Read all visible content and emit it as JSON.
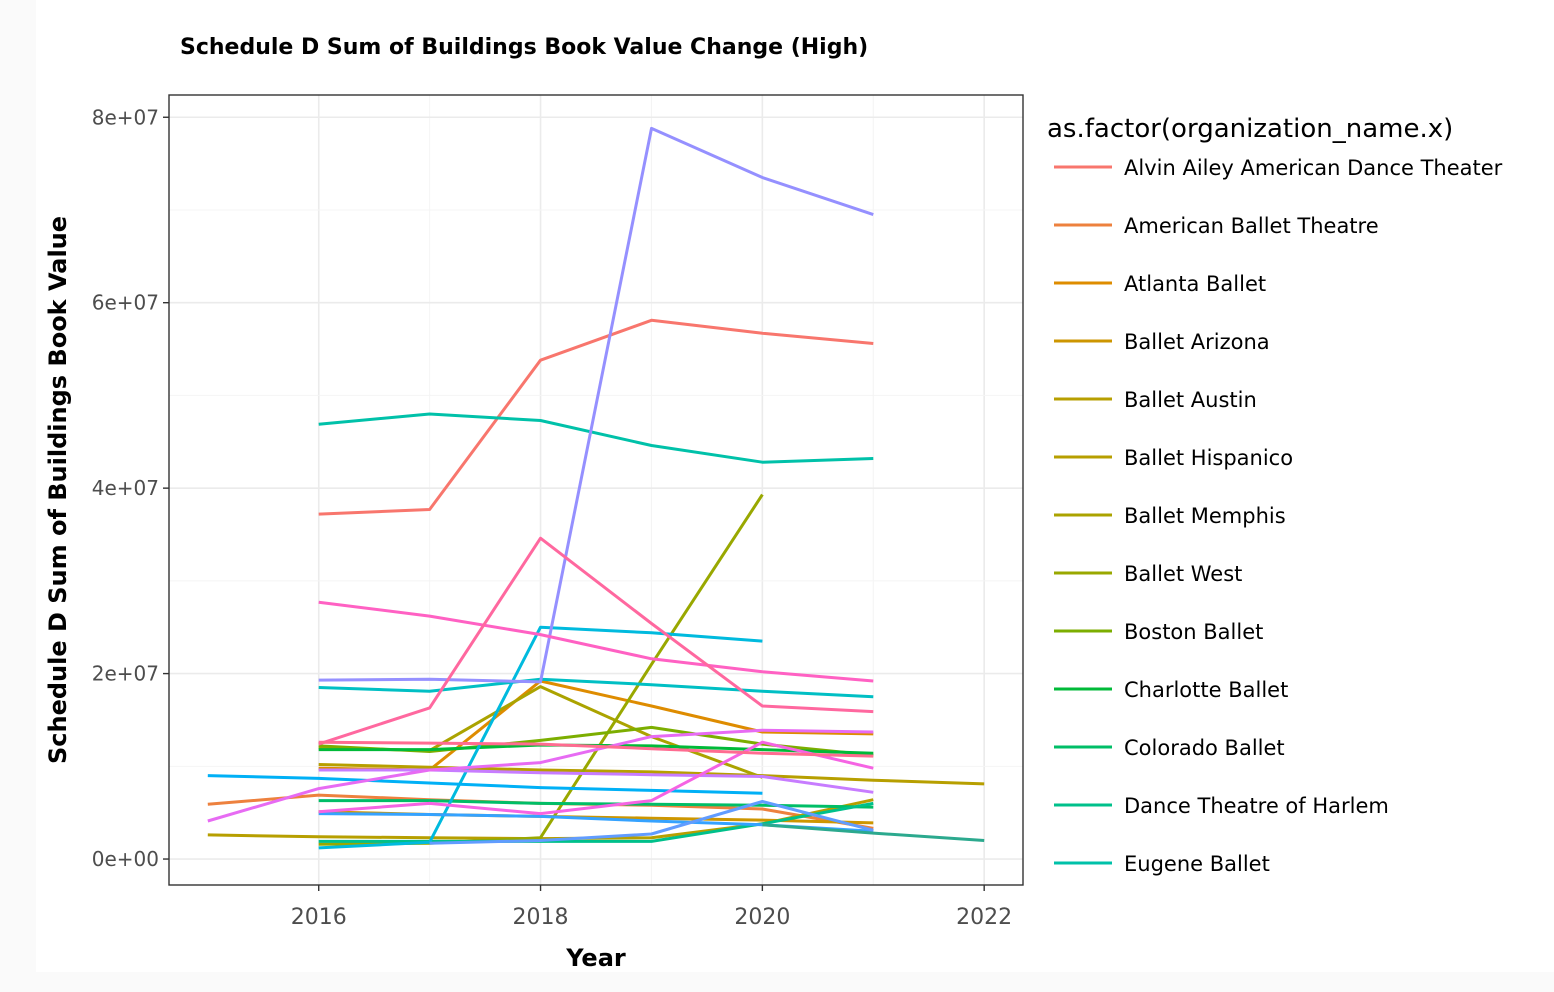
{
  "chart_data": {
    "type": "line",
    "title": "Schedule D Sum of Buildings Book Value Change (High)",
    "xlabel": "Year",
    "ylabel": "Schedule D Sum of Buildings Book Value",
    "xlim": [
      2014.65,
      2022.35
    ],
    "ylim": [
      -2800000,
      82400000
    ],
    "x_ticks": [
      2016,
      2018,
      2020,
      2022
    ],
    "y_ticks": [
      0,
      20000000,
      40000000,
      60000000,
      80000000
    ],
    "y_tick_labels": [
      "0e+00",
      "2e+07",
      "4e+07",
      "6e+07",
      "8e+07"
    ],
    "grid": true,
    "legend_title": "as.factor(organization_name.x)",
    "legend_position": "right",
    "series": [
      {
        "name": "Alvin Ailey American Dance Theater",
        "color": "#F8766D",
        "x": [
          2016,
          2017,
          2018,
          2019,
          2020,
          2021
        ],
        "y": [
          37200000,
          37700000,
          53800000,
          58100000,
          56700000,
          55600000
        ]
      },
      {
        "name": "American Ballet Theatre",
        "color": "#ED813E",
        "x": [
          2015,
          2016,
          2017,
          2018,
          2019,
          2020,
          2021
        ],
        "y": [
          5900000,
          6900000,
          6400000,
          6000000,
          5800000,
          5400000,
          3300000
        ]
      },
      {
        "name": "Atlanta Ballet",
        "color": "#DE8C00",
        "x": [
          2016,
          2017,
          2018,
          2019,
          2020,
          2021
        ],
        "y": [
          9800000,
          9600000,
          19200000,
          16500000,
          13700000,
          13500000
        ]
      },
      {
        "name": "Ballet Arizona",
        "color": "#CD9600",
        "x": [
          2016,
          2017,
          2018,
          2019,
          2020,
          2021
        ],
        "y": [
          5100000,
          4800000,
          4600000,
          4400000,
          4200000,
          3900000
        ]
      },
      {
        "name": "Ballet Austin",
        "color": "#B79F00",
        "x": [
          2015,
          2016,
          2017,
          2018,
          2019,
          2020,
          2021
        ],
        "y": [
          2600000,
          2400000,
          2300000,
          2200000,
          2300000,
          3800000,
          6400000
        ]
      },
      {
        "name": "Ballet Hispanico",
        "color": "#B79F00",
        "x": [
          2016,
          2017,
          2018,
          2019,
          2020,
          2021,
          2022
        ],
        "y": [
          10200000,
          9900000,
          9600000,
          9400000,
          9000000,
          8500000,
          8100000
        ]
      },
      {
        "name": "Ballet Memphis",
        "color": "#ABA300",
        "x": [
          2016,
          2017,
          2018,
          2019,
          2020
        ],
        "y": [
          12000000,
          11700000,
          18600000,
          13200000,
          8800000
        ]
      },
      {
        "name": "Ballet West",
        "color": "#99A800",
        "x": [
          2016,
          2017,
          2018,
          2019,
          2020
        ],
        "y": [
          1600000,
          1700000,
          2300000,
          21000000,
          39300000
        ]
      },
      {
        "name": "Boston Ballet",
        "color": "#7CAE00",
        "x": [
          2016,
          2017,
          2018,
          2019,
          2020,
          2021
        ],
        "y": [
          12200000,
          11600000,
          12800000,
          14200000,
          12400000,
          11200000
        ]
      },
      {
        "name": "Charlotte Ballet",
        "color": "#00BA38",
        "x": [
          2016,
          2017,
          2018,
          2019,
          2020,
          2021
        ],
        "y": [
          11800000,
          11800000,
          12300000,
          12200000,
          11800000,
          11400000
        ]
      },
      {
        "name": "Colorado Ballet",
        "color": "#00BE67",
        "x": [
          2016,
          2017,
          2018,
          2019,
          2020,
          2021
        ],
        "y": [
          6300000,
          6300000,
          6000000,
          5900000,
          5800000,
          5600000
        ]
      },
      {
        "name": "Dance Theatre of Harlem",
        "color": "#00C08B",
        "x": [
          2016,
          2017,
          2018,
          2019,
          2020,
          2021
        ],
        "y": [
          1900000,
          1900000,
          1900000,
          1900000,
          3800000,
          6000000
        ]
      },
      {
        "name": "Eugene Ballet",
        "color": "#00C1A9",
        "x": [
          2016,
          2017,
          2018,
          2019,
          2020,
          2021
        ],
        "y": [
          46900000,
          48000000,
          47300000,
          44600000,
          42800000,
          43200000
        ]
      },
      {
        "name": "",
        "color": "#00BFC4",
        "x": [
          2016,
          2017,
          2018,
          2019,
          2020,
          2021
        ],
        "y": [
          18500000,
          18100000,
          19400000,
          18800000,
          18100000,
          17500000
        ]
      },
      {
        "name": "",
        "color": "#00BADE",
        "x": [
          2016,
          2017,
          2018,
          2019,
          2020
        ],
        "y": [
          1200000,
          1800000,
          25000000,
          24400000,
          23500000
        ]
      },
      {
        "name": "",
        "color": "#00B0F6",
        "x": [
          2015,
          2016,
          2017,
          2018,
          2019,
          2020
        ],
        "y": [
          9000000,
          8700000,
          8200000,
          7700000,
          7400000,
          7100000
        ]
      },
      {
        "name": "",
        "color": "#35A2FF",
        "x": [
          2016,
          2017,
          2018,
          2019,
          2020,
          2021
        ],
        "y": [
          4900000,
          4800000,
          4600000,
          4100000,
          3700000,
          3000000
        ]
      },
      {
        "name": "",
        "color": "#619CFF",
        "x": [
          2017,
          2018,
          2019,
          2020,
          2021
        ],
        "y": [
          1700000,
          2000000,
          2700000,
          6200000,
          3100000
        ]
      },
      {
        "name": "",
        "color": "#9590FF",
        "x": [
          2016,
          2017,
          2018,
          2019,
          2020,
          2021
        ],
        "y": [
          19300000,
          19400000,
          19100000,
          78800000,
          73500000,
          69500000
        ]
      },
      {
        "name": "",
        "color": "#C77CFF",
        "x": [
          2016,
          2017,
          2018,
          2019,
          2020,
          2021
        ],
        "y": [
          9600000,
          9600000,
          9300000,
          9100000,
          8900000,
          7200000
        ]
      },
      {
        "name": "",
        "color": "#E76BF3",
        "x": [
          2015,
          2016,
          2017,
          2018,
          2019,
          2020,
          2021
        ],
        "y": [
          4100000,
          7600000,
          9600000,
          10400000,
          13200000,
          13900000,
          13700000
        ]
      },
      {
        "name": "",
        "color": "#F564E3",
        "x": [
          2016,
          2017,
          2018,
          2019,
          2020,
          2021
        ],
        "y": [
          5100000,
          6000000,
          4900000,
          6300000,
          12600000,
          9800000
        ]
      },
      {
        "name": "",
        "color": "#FF61C3",
        "x": [
          2016,
          2017,
          2018,
          2019,
          2020,
          2021
        ],
        "y": [
          27700000,
          26200000,
          24200000,
          21600000,
          20200000,
          19200000
        ]
      },
      {
        "name": "",
        "color": "#FF689F",
        "x": [
          2016,
          2017,
          2018,
          2019,
          2020,
          2021
        ],
        "y": [
          12400000,
          16300000,
          34600000,
          25400000,
          16500000,
          15900000
        ]
      },
      {
        "name": "",
        "color": "#FF6C91",
        "x": [
          2016,
          2017,
          2018,
          2019,
          2020,
          2021
        ],
        "y": [
          12600000,
          12500000,
          12400000,
          11900000,
          11400000,
          11100000
        ]
      },
      {
        "name": "",
        "color": "#2CA98E",
        "x": [
          2020,
          2021,
          2022
        ],
        "y": [
          3700000,
          2800000,
          2000000
        ]
      }
    ]
  }
}
